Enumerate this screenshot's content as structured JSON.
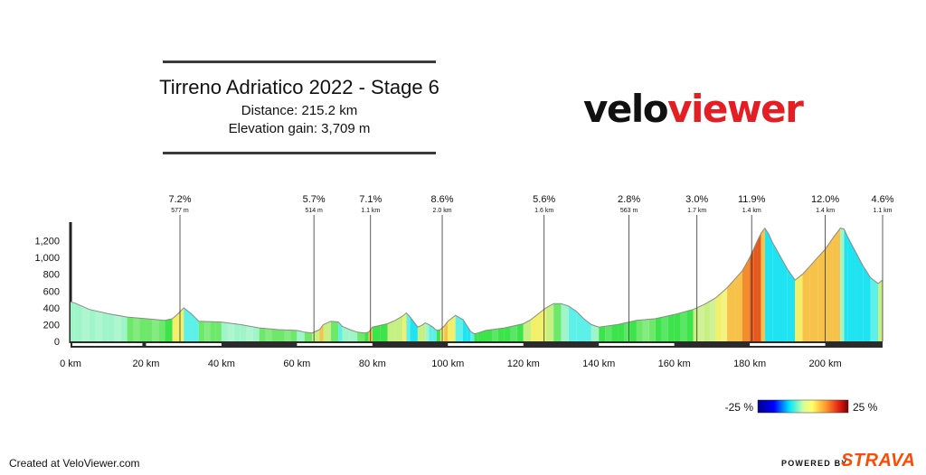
{
  "header": {
    "title": "Tirreno Adriatico 2022 - Stage 6",
    "distance": "Distance: 215.2 km",
    "elevation_gain": "Elevation gain: 3,709 m"
  },
  "logo": {
    "part1": "velo",
    "part2": "viewer"
  },
  "footer": {
    "created": "Created at VeloViewer.com",
    "powered": "POWERED BY",
    "strava": "STRAVA"
  },
  "colors": {
    "brand_red": "#e31e24",
    "strava_orange": "#fc4c02"
  },
  "chart_data": {
    "type": "area",
    "title": "Tirreno Adriatico 2022 - Stage 6",
    "x_unit": "km",
    "y_unit": "m",
    "xlim": [
      0,
      215.2
    ],
    "ylim": [
      0,
      1400
    ],
    "x_ticks": [
      0,
      20,
      40,
      60,
      80,
      100,
      120,
      140,
      160,
      180,
      200
    ],
    "x_tick_labels": [
      "0 km",
      "20 km",
      "40 km",
      "60 km",
      "80 km",
      "100 km",
      "120 km",
      "140 km",
      "160 km",
      "180 km",
      "200 km"
    ],
    "y_ticks": [
      0,
      200,
      400,
      600,
      800,
      1000,
      1200
    ],
    "y_tick_labels": [
      "0",
      "200",
      "400",
      "600",
      "800",
      "1,000",
      "1,200"
    ],
    "profile": {
      "x": [
        0,
        1,
        5,
        10,
        15,
        20,
        25,
        27,
        28.5,
        30,
        32,
        34,
        40,
        45,
        50,
        55,
        60,
        62,
        64,
        66,
        67,
        69,
        71,
        72,
        74,
        76,
        78,
        79,
        80,
        82,
        84,
        86,
        88,
        89,
        90,
        92,
        93,
        94,
        95,
        96,
        97,
        98,
        99,
        100,
        102,
        104,
        105,
        106,
        107,
        108,
        110,
        115,
        120,
        122,
        124,
        126,
        128,
        130,
        132,
        134,
        136,
        138,
        140,
        145,
        150,
        155,
        160,
        165,
        168,
        171,
        174,
        176,
        178,
        180,
        181,
        182,
        183,
        184,
        185,
        186,
        188,
        190,
        192,
        194,
        196,
        198,
        200,
        202,
        204,
        205,
        206,
        208,
        210,
        212,
        214,
        215.2
      ],
      "y": [
        470,
        460,
        380,
        330,
        290,
        270,
        250,
        270,
        330,
        400,
        330,
        240,
        230,
        200,
        160,
        140,
        130,
        110,
        100,
        140,
        200,
        240,
        230,
        180,
        140,
        110,
        100,
        110,
        170,
        190,
        210,
        250,
        300,
        340,
        290,
        170,
        190,
        220,
        200,
        170,
        130,
        140,
        180,
        240,
        310,
        260,
        190,
        120,
        90,
        100,
        130,
        160,
        210,
        260,
        330,
        400,
        450,
        450,
        420,
        360,
        270,
        200,
        170,
        200,
        250,
        270,
        320,
        380,
        440,
        520,
        640,
        740,
        840,
        1000,
        1100,
        1200,
        1290,
        1350,
        1280,
        1180,
        1020,
        860,
        730,
        800,
        900,
        1000,
        1100,
        1230,
        1350,
        1340,
        1240,
        1070,
        900,
        760,
        690,
        730
      ]
    },
    "climbs": [
      {
        "km": 29,
        "gradient": "7.2%",
        "length": "577 m"
      },
      {
        "km": 64.5,
        "gradient": "5.7%",
        "length": "514 m"
      },
      {
        "km": 79.5,
        "gradient": "7.1%",
        "length": "1.1 km"
      },
      {
        "km": 98.5,
        "gradient": "8.6%",
        "length": "2.0 km"
      },
      {
        "km": 125.5,
        "gradient": "5.6%",
        "length": "1.6 km"
      },
      {
        "km": 148,
        "gradient": "2.8%",
        "length": "563 m"
      },
      {
        "km": 166,
        "gradient": "3.0%",
        "length": "1.7 km"
      },
      {
        "km": 180.5,
        "gradient": "11.9%",
        "length": "1.4 km"
      },
      {
        "km": 200,
        "gradient": "12.0%",
        "length": "1.4 km"
      },
      {
        "km": 215.2,
        "gradient": "4.6%",
        "length": "1.1 km"
      }
    ],
    "legend": {
      "min_label": "-25 %",
      "max_label": "25 %",
      "placement": "bottom-right"
    }
  }
}
